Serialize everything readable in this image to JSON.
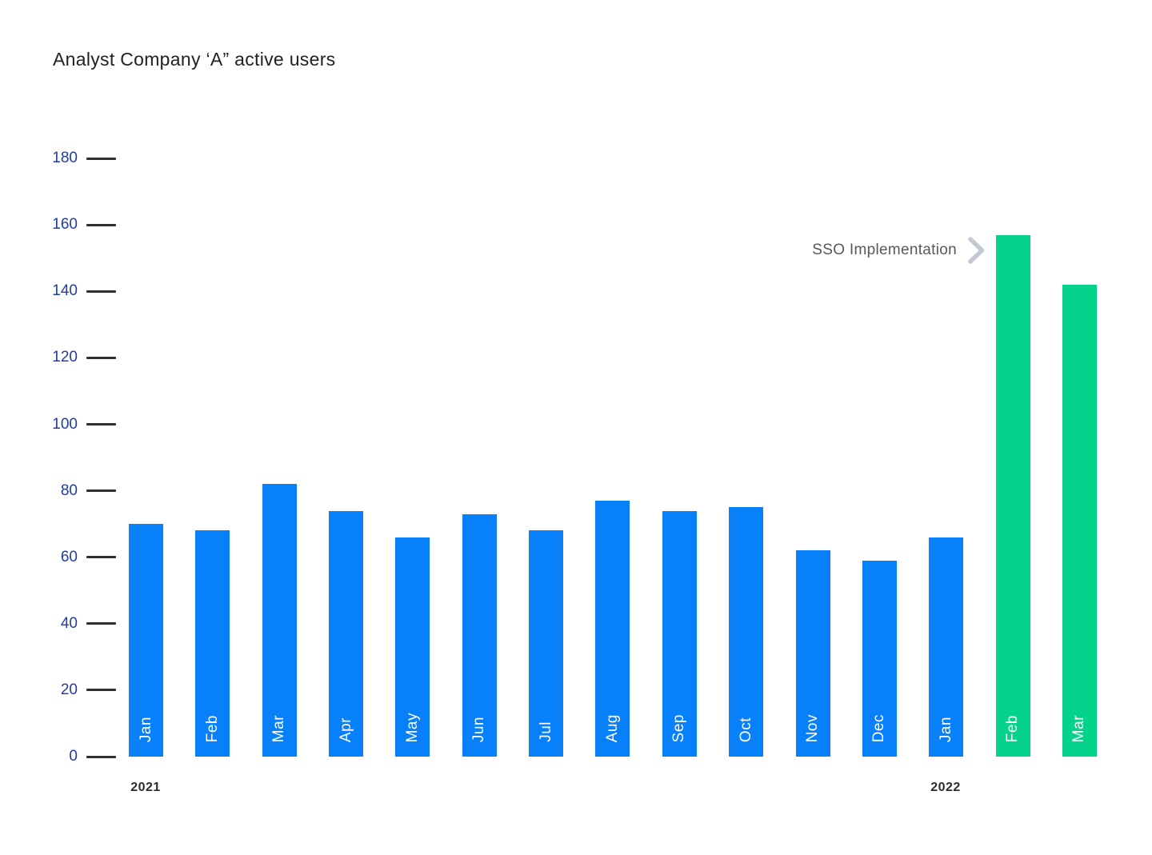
{
  "chart_data": {
    "type": "bar",
    "title": "Analyst Company ‘A” active users",
    "categories": [
      "Jan",
      "Feb",
      "Mar",
      "Apr",
      "May",
      "Jun",
      "Jul",
      "Aug",
      "Sep",
      "Oct",
      "Nov",
      "Dec",
      "Jan",
      "Feb",
      "Mar"
    ],
    "category_years": [
      "2021",
      "2021",
      "2021",
      "2021",
      "2021",
      "2021",
      "2021",
      "2021",
      "2021",
      "2021",
      "2021",
      "2021",
      "2022",
      "2022",
      "2022"
    ],
    "values": [
      70,
      68,
      82,
      74,
      66,
      73,
      68,
      77,
      74,
      75,
      62,
      59,
      66,
      157,
      142
    ],
    "highlight_indices": [
      13,
      14
    ],
    "x_group_labels": [
      "2021",
      "2022"
    ],
    "xlabel": "",
    "ylabel": "",
    "ylim": [
      0,
      180
    ],
    "yticks": [
      0,
      20,
      40,
      60,
      80,
      100,
      120,
      140,
      160,
      180
    ],
    "grid": false,
    "legend": false,
    "colors": {
      "bar_default": "#0780FA",
      "bar_highlight": "#05D38B",
      "ytick_label": "#203CA5",
      "tick_mark": "#2E2E2E",
      "annotation_text": "#56585C",
      "annotation_arrow": "#C3C9D2"
    },
    "annotation": {
      "text": "SSO Implementation",
      "target": "Feb 2022"
    }
  }
}
